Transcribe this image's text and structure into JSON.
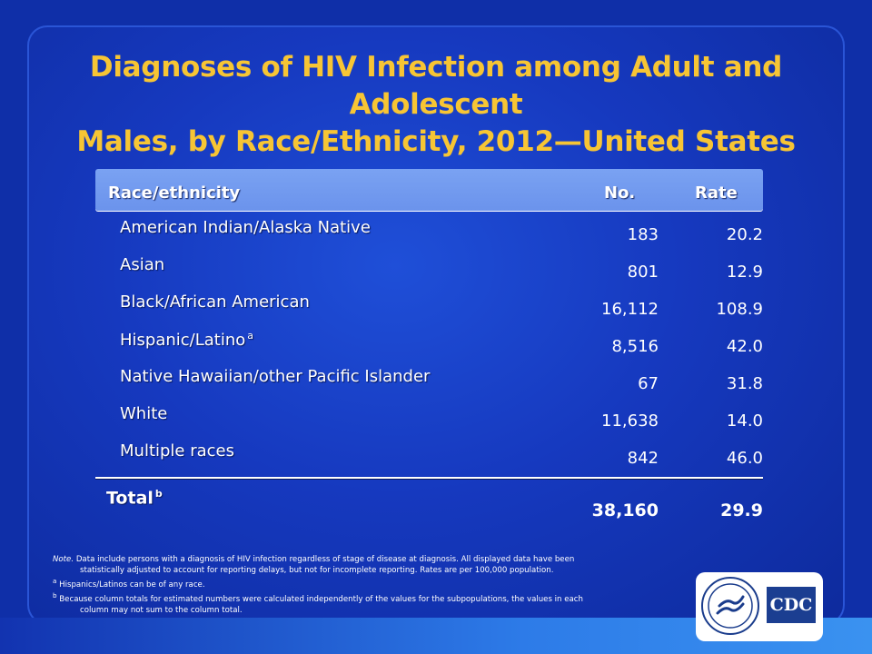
{
  "title_line1": "Diagnoses of HIV Infection among Adult and Adolescent",
  "title_line2": "Males, by Race/Ethnicity, 2012—United States",
  "table": {
    "headers": {
      "race": "Race/ethnicity",
      "no": "No.",
      "rate": "Rate"
    },
    "rows": [
      {
        "race": "American Indian/Alaska Native",
        "no": "183",
        "rate": "20.2",
        "footnote": ""
      },
      {
        "race": "Asian",
        "no": "801",
        "rate": "12.9",
        "footnote": ""
      },
      {
        "race": "Black/African American",
        "no": "16,112",
        "rate": "108.9",
        "footnote": ""
      },
      {
        "race": "Hispanic/Latino",
        "no": "8,516",
        "rate": "42.0",
        "footnote": "a"
      },
      {
        "race": "Native Hawaiian/other Pacific Islander",
        "no": "67",
        "rate": "31.8",
        "footnote": ""
      },
      {
        "race": "White",
        "no": "11,638",
        "rate": "14.0",
        "footnote": ""
      },
      {
        "race": "Multiple races",
        "no": "842",
        "rate": "46.0",
        "footnote": ""
      }
    ],
    "total": {
      "label": "Total",
      "footnote": "b",
      "no": "38,160",
      "rate": "29.9"
    }
  },
  "notes": {
    "note_label": "Note.",
    "note_line1": "Data include persons with a diagnosis of HIV infection regardless of stage of  disease at diagnosis. All displayed data have been",
    "note_line2": "statistically adjusted to account for reporting delays, but not for incomplete reporting. Rates are per 100,000 population.",
    "a_mark": "a",
    "a_text": "Hispanics/Latinos can be of any race.",
    "b_mark": "b",
    "b_line1": "Because column totals for estimated numbers were calculated independently of the values for the subpopulations, the values in each",
    "b_line2": "column may not sum to the column total."
  },
  "logo": {
    "text": "CDC"
  }
}
